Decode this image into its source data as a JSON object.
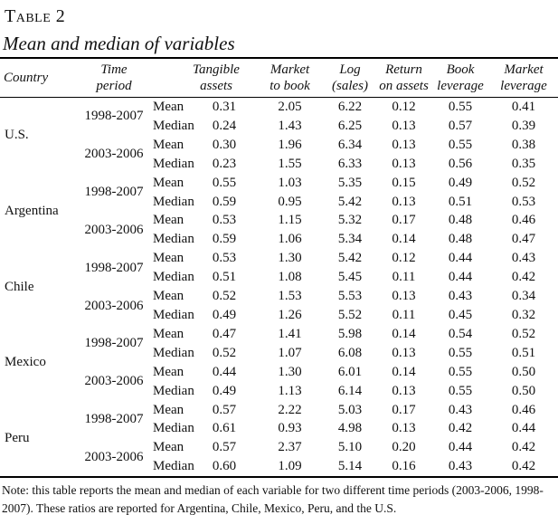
{
  "title": "Table 2",
  "subtitle": "Mean and median of variables",
  "accent_colors": {
    "text": "#111111",
    "rule": "#000000",
    "background": "#ffffff"
  },
  "table": {
    "columns": [
      {
        "id": "country",
        "lines": [
          "Country"
        ]
      },
      {
        "id": "period",
        "lines": [
          "Time",
          "period"
        ]
      },
      {
        "id": "stat",
        "lines": []
      },
      {
        "id": "tangible_assets",
        "lines": [
          "Tangible",
          "assets"
        ]
      },
      {
        "id": "market_to_book",
        "lines": [
          "Market",
          "to book"
        ]
      },
      {
        "id": "log_sales",
        "lines": [
          "Log",
          "(sales)"
        ]
      },
      {
        "id": "return_on_assets",
        "lines": [
          "Return",
          "on assets"
        ]
      },
      {
        "id": "book_leverage",
        "lines": [
          "Book",
          "leverage"
        ]
      },
      {
        "id": "market_leverage",
        "lines": [
          "Market",
          "leverage"
        ]
      }
    ],
    "countries": [
      {
        "name": "U.S.",
        "periods": [
          {
            "period": "1998-2007",
            "rows": [
              {
                "stat": "Mean",
                "values": [
                  "0.31",
                  "2.05",
                  "6.22",
                  "0.12",
                  "0.55",
                  "0.41"
                ]
              },
              {
                "stat": "Median",
                "values": [
                  "0.24",
                  "1.43",
                  "6.25",
                  "0.13",
                  "0.57",
                  "0.39"
                ]
              }
            ]
          },
          {
            "period": "2003-2006",
            "rows": [
              {
                "stat": "Mean",
                "values": [
                  "0.30",
                  "1.96",
                  "6.34",
                  "0.13",
                  "0.55",
                  "0.38"
                ]
              },
              {
                "stat": "Median",
                "values": [
                  "0.23",
                  "1.55",
                  "6.33",
                  "0.13",
                  "0.56",
                  "0.35"
                ]
              }
            ]
          }
        ]
      },
      {
        "name": "Argentina",
        "periods": [
          {
            "period": "1998-2007",
            "rows": [
              {
                "stat": "Mean",
                "values": [
                  "0.55",
                  "1.03",
                  "5.35",
                  "0.15",
                  "0.49",
                  "0.52"
                ]
              },
              {
                "stat": "Median",
                "values": [
                  "0.59",
                  "0.95",
                  "5.42",
                  "0.13",
                  "0.51",
                  "0.53"
                ]
              }
            ]
          },
          {
            "period": "2003-2006",
            "rows": [
              {
                "stat": "Mean",
                "values": [
                  "0.53",
                  "1.15",
                  "5.32",
                  "0.17",
                  "0.48",
                  "0.46"
                ]
              },
              {
                "stat": "Median",
                "values": [
                  "0.59",
                  "1.06",
                  "5.34",
                  "0.14",
                  "0.48",
                  "0.47"
                ]
              }
            ]
          }
        ]
      },
      {
        "name": "Chile",
        "periods": [
          {
            "period": "1998-2007",
            "rows": [
              {
                "stat": "Mean",
                "values": [
                  "0.53",
                  "1.30",
                  "5.42",
                  "0.12",
                  "0.44",
                  "0.43"
                ]
              },
              {
                "stat": "Median",
                "values": [
                  "0.51",
                  "1.08",
                  "5.45",
                  "0.11",
                  "0.44",
                  "0.42"
                ]
              }
            ]
          },
          {
            "period": "2003-2006",
            "rows": [
              {
                "stat": "Mean",
                "values": [
                  "0.52",
                  "1.53",
                  "5.53",
                  "0.13",
                  "0.43",
                  "0.34"
                ]
              },
              {
                "stat": "Median",
                "values": [
                  "0.49",
                  "1.26",
                  "5.52",
                  "0.11",
                  "0.45",
                  "0.32"
                ]
              }
            ]
          }
        ]
      },
      {
        "name": "Mexico",
        "periods": [
          {
            "period": "1998-2007",
            "rows": [
              {
                "stat": "Mean",
                "values": [
                  "0.47",
                  "1.41",
                  "5.98",
                  "0.14",
                  "0.54",
                  "0.52"
                ]
              },
              {
                "stat": "Median",
                "values": [
                  "0.52",
                  "1.07",
                  "6.08",
                  "0.13",
                  "0.55",
                  "0.51"
                ]
              }
            ]
          },
          {
            "period": "2003-2006",
            "rows": [
              {
                "stat": "Mean",
                "values": [
                  "0.44",
                  "1.30",
                  "6.01",
                  "0.14",
                  "0.55",
                  "0.50"
                ]
              },
              {
                "stat": "Median",
                "values": [
                  "0.49",
                  "1.13",
                  "6.14",
                  "0.13",
                  "0.55",
                  "0.50"
                ]
              }
            ]
          }
        ]
      },
      {
        "name": "Peru",
        "periods": [
          {
            "period": "1998-2007",
            "rows": [
              {
                "stat": "Mean",
                "values": [
                  "0.57",
                  "2.22",
                  "5.03",
                  "0.17",
                  "0.43",
                  "0.46"
                ]
              },
              {
                "stat": "Median",
                "values": [
                  "0.61",
                  "0.93",
                  "4.98",
                  "0.13",
                  "0.42",
                  "0.44"
                ]
              }
            ]
          },
          {
            "period": "2003-2006",
            "rows": [
              {
                "stat": "Mean",
                "values": [
                  "0.57",
                  "2.37",
                  "5.10",
                  "0.20",
                  "0.44",
                  "0.42"
                ]
              },
              {
                "stat": "Median",
                "values": [
                  "0.60",
                  "1.09",
                  "5.14",
                  "0.16",
                  "0.43",
                  "0.42"
                ]
              }
            ]
          }
        ]
      }
    ]
  },
  "note": "Note: this table reports the mean and median of each variable for two different time periods (2003-2006, 1998-2007). These ratios are reported for Argentina, Chile, Mexico, Peru, and the U.S."
}
